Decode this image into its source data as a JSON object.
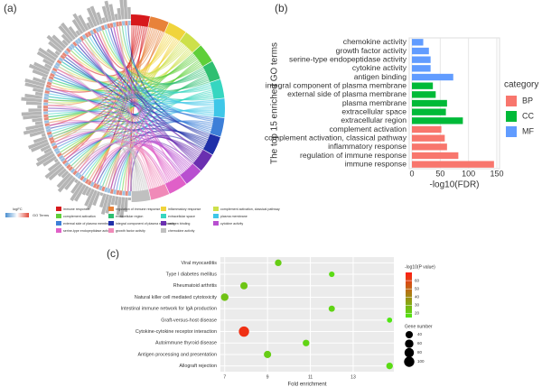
{
  "chart_data": [
    {
      "type": "chord",
      "panel": "(a)",
      "categories": [
        "immune response",
        "regulation of immune response",
        "inflammatory response",
        "complement activation, classical pathway",
        "complement activation",
        "extracellular region",
        "extracellular space",
        "plasma membrane",
        "external side of plasma membrane",
        "integral component of plasma membrane",
        "antigen binding",
        "cytokine activity",
        "serine-type endopeptidase activity",
        "growth factor activity",
        "chemokine activity"
      ],
      "colors": [
        "#d7191c",
        "#e8823a",
        "#f0d43c",
        "#cde04a",
        "#5fcf3a",
        "#2fbf71",
        "#36d6c0",
        "#3fc7e8",
        "#3d7fd8",
        "#1f2fa8",
        "#6a2fb0",
        "#b84fd0",
        "#e060c8",
        "#f08ab8",
        "#c0c0c0"
      ],
      "colorbar_title": "logFC",
      "legend_title": "GO Terms"
    },
    {
      "type": "bar",
      "orientation": "horizontal",
      "panel": "(b)",
      "categories": [
        "chemokine activity",
        "growth factor activity",
        "serine-type endopeptidase activity",
        "cytokine activity",
        "antigen binding",
        "integral component of plasma membrane",
        "external side of plasma membrane",
        "plasma membrane",
        "extracellular space",
        "extracellular region",
        "complement activation",
        "complement activation, classical pathway",
        "inflammatory response",
        "regulation of immune response",
        "immune response"
      ],
      "series": [
        {
          "name": "BP",
          "color": "#f8766d",
          "values": [
            null,
            null,
            null,
            null,
            null,
            null,
            null,
            null,
            null,
            null,
            52,
            58,
            62,
            82,
            145
          ]
        },
        {
          "name": "CC",
          "color": "#00ba38",
          "values": [
            null,
            null,
            null,
            null,
            null,
            37,
            42,
            62,
            60,
            90,
            null,
            null,
            null,
            null,
            null
          ]
        },
        {
          "name": "MF",
          "color": "#619cff",
          "values": [
            20,
            30,
            33,
            33,
            73,
            null,
            null,
            null,
            null,
            null,
            null,
            null,
            null,
            null,
            null
          ]
        }
      ],
      "x_label": "-log10(FDR)",
      "y_label": "The top 15 enriched GO terms",
      "legend_title": "category",
      "xlim": [
        0,
        150
      ],
      "xticks": [
        0,
        50,
        100,
        150
      ],
      "grid": true
    },
    {
      "type": "scatter",
      "panel": "(c)",
      "categories": [
        "Viral myocarditis",
        "Type I diabetes mellitus",
        "Rheumatoid arthritis",
        "Natural killer cell mediated cytotoxicity",
        "Intestinal immune network for IgA production",
        "Graft-versus-host disease",
        "Cytokine-cytokine receptor interaction",
        "Autoimmune thyroid disease",
        "Antigen processing and presentation",
        "Allograft rejection"
      ],
      "x": [
        9.5,
        12,
        7.9,
        7,
        12,
        14.7,
        7.9,
        10.8,
        9,
        14.7
      ],
      "pvalue": [
        22,
        18,
        24,
        25,
        20,
        15,
        65,
        20,
        22,
        18
      ],
      "sizes": [
        30,
        18,
        40,
        45,
        25,
        14,
        100,
        30,
        40,
        30
      ],
      "x_label": "Fold enrichment",
      "xlim": [
        6.8,
        14.9
      ],
      "xticks": [
        7,
        9,
        11,
        13
      ],
      "color_title": "-log10(P value)",
      "clim": [
        15,
        70
      ],
      "cticks": [
        20,
        30,
        40,
        50,
        60
      ],
      "size_title": "Gene number",
      "size_ticks": [
        40,
        60,
        80,
        100
      ],
      "grid": true
    }
  ]
}
